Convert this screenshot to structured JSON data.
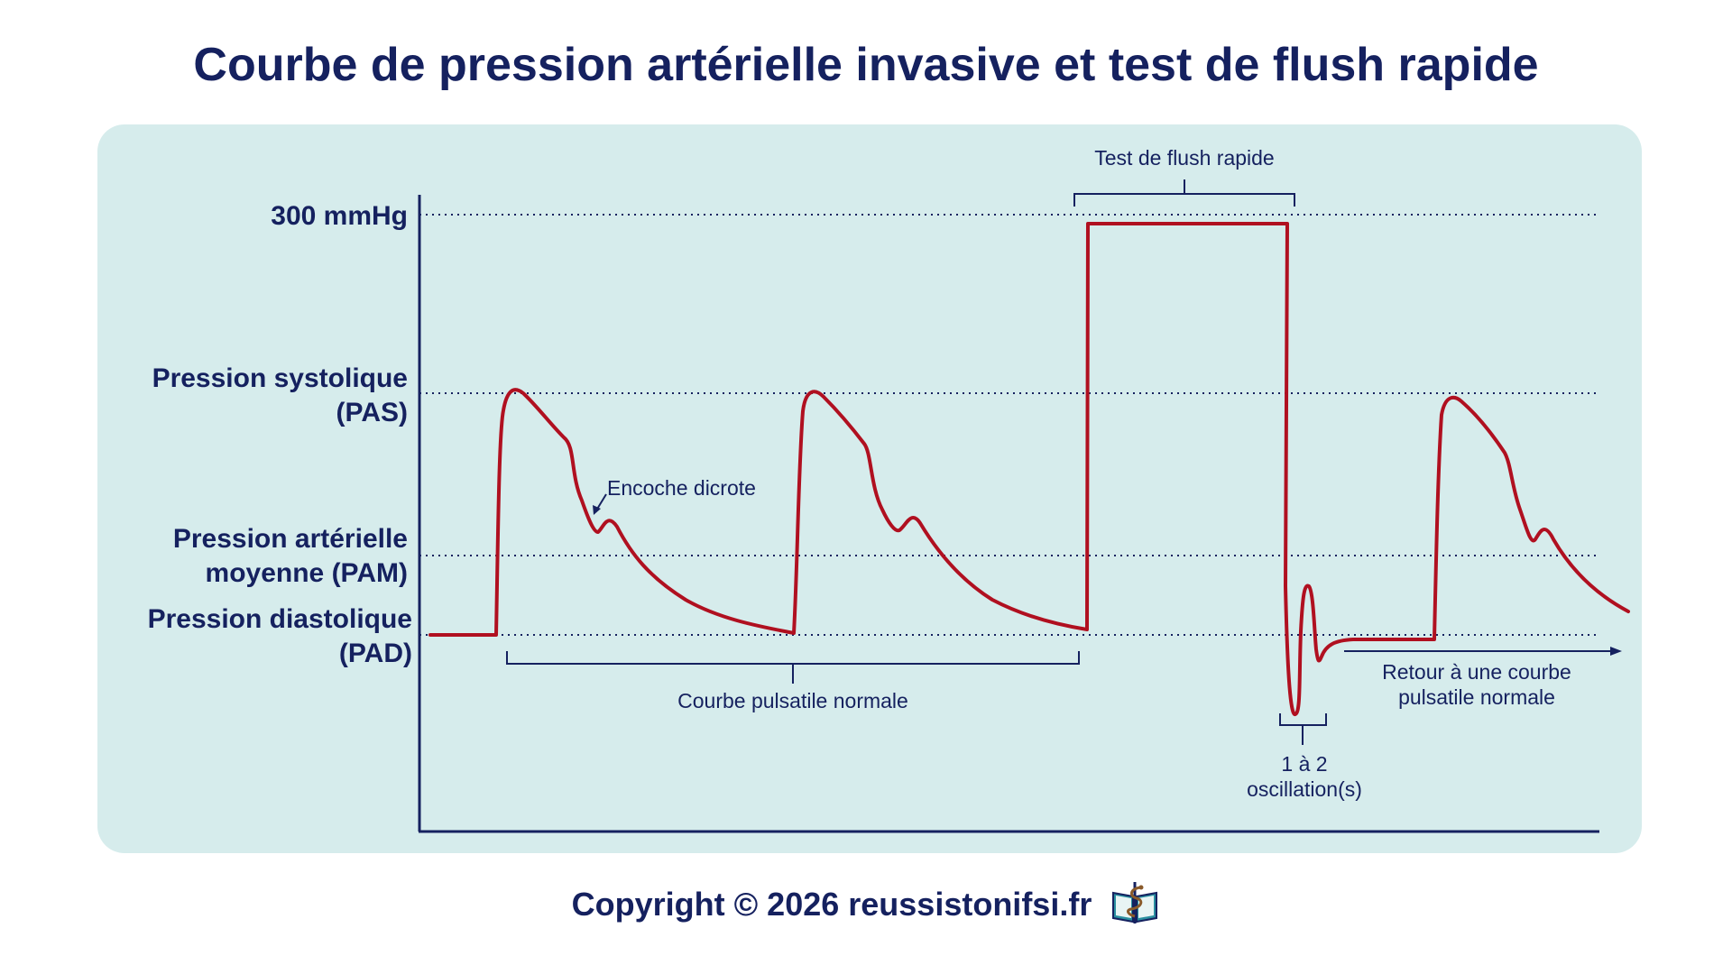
{
  "title": "Courbe de pression artérielle invasive et test de flush rapide",
  "levels": {
    "max": {
      "label": "300 mmHg"
    },
    "systolic": {
      "line1": "Pression systolique",
      "line2": "(PAS)"
    },
    "mean": {
      "line1": "Pression artérielle",
      "line2": "moyenne (PAM)"
    },
    "diastolic": {
      "line1": "Pression diastolique",
      "line2": "(PAD)"
    }
  },
  "annotations": {
    "flush_test": "Test de flush rapide",
    "dicrotic_notch": "Encoche dicrote",
    "normal_curve": "Courbe pulsatile normale",
    "oscillations_line1": "1 à 2",
    "oscillations_line2": "oscillation(s)",
    "return_line1": "Retour à une courbe",
    "return_line2": "pulsatile normale"
  },
  "footer": {
    "copyright": "Copyright © 2026 reussistonifsi.fr"
  },
  "colors": {
    "background": "#ffffff",
    "panel": "#d6ecec",
    "text": "#15215f",
    "waveform": "#b01020"
  },
  "icons": {
    "footer": "book-caduceus-icon"
  }
}
